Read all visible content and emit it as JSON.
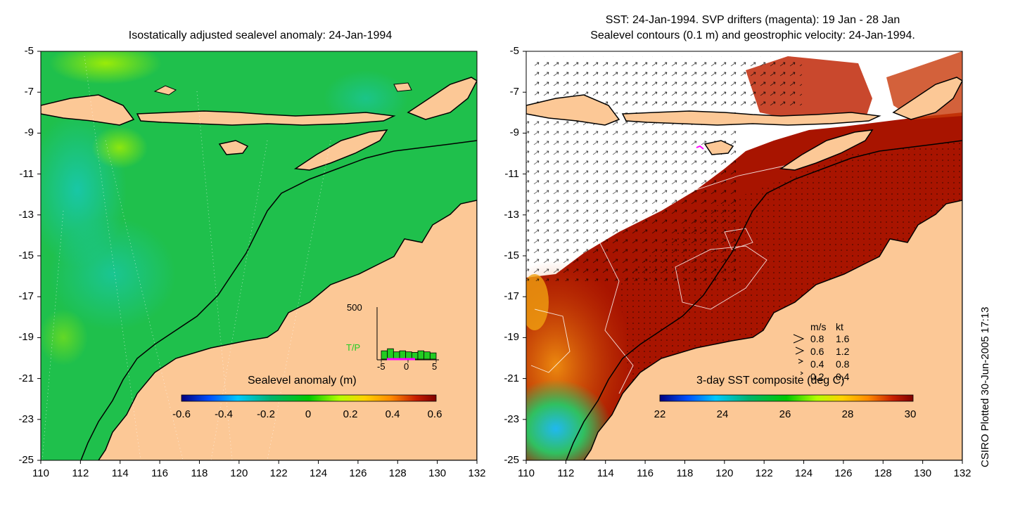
{
  "left_panel": {
    "title": "Isostatically adjusted sealevel anomaly: 24-Jan-1994",
    "colorbar_label": "Sealevel anomaly (m)",
    "colorbar_ticks": [
      "-0.6",
      "-0.4",
      "-0.2",
      "0",
      "0.2",
      "0.4",
      "0.6"
    ],
    "colorbar_colors": [
      "#000080",
      "#0050ff",
      "#00c8ff",
      "#00b46e",
      "#00c800",
      "#b4ff00",
      "#ffd200",
      "#ff8c00",
      "#c81e00",
      "#800000"
    ],
    "inset": {
      "ymax_label": "500",
      "series_label": "T/P",
      "series_color": "#22cc22",
      "marker_color": "#ff00ff",
      "x_ticks": [
        "-5",
        "0",
        "5"
      ],
      "bar_values": [
        80,
        100,
        70,
        80,
        70,
        65,
        80,
        70,
        60
      ]
    }
  },
  "right_panel": {
    "title_line1": "SST: 24-Jan-1994. SVP drifters (magenta): 19 Jan - 28 Jan",
    "title_line2": "Sealevel contours (0.1 m) and geostrophic velocity: 24-Jan-1994.",
    "colorbar_label": "3-day SST composite (deg C)",
    "colorbar_ticks": [
      "22",
      "24",
      "26",
      "28",
      "30"
    ],
    "colorbar_colors": [
      "#000080",
      "#0050ff",
      "#00c8ff",
      "#00b46e",
      "#00c800",
      "#b4ff00",
      "#ffd200",
      "#ff8c00",
      "#c81e00",
      "#800000"
    ],
    "velocity_legend": {
      "header_ms": "m/s",
      "header_kt": "kt",
      "rows": [
        {
          "ms": "0.8",
          "kt": "1.6"
        },
        {
          "ms": "0.6",
          "kt": "1.2"
        },
        {
          "ms": "0.4",
          "kt": "0.8"
        },
        {
          "ms": "0.2",
          "kt": "0.4"
        }
      ]
    }
  },
  "axes": {
    "lat_ticks": [
      "-5",
      "-7",
      "-9",
      "-11",
      "-13",
      "-15",
      "-17",
      "-19",
      "-21",
      "-23",
      "-25"
    ],
    "lon_ticks": [
      "110",
      "112",
      "114",
      "116",
      "118",
      "120",
      "122",
      "124",
      "126",
      "128",
      "130",
      "132"
    ],
    "lat_range": [
      -25,
      -5
    ],
    "lon_range": [
      110,
      132
    ]
  },
  "credit": "CSIRO Plotted 30-Jun-2005 17:13",
  "colors": {
    "land": "#fcc896",
    "ocean_green": "#22c24a",
    "sst_warm": "#a81400",
    "coastline": "#000000"
  }
}
